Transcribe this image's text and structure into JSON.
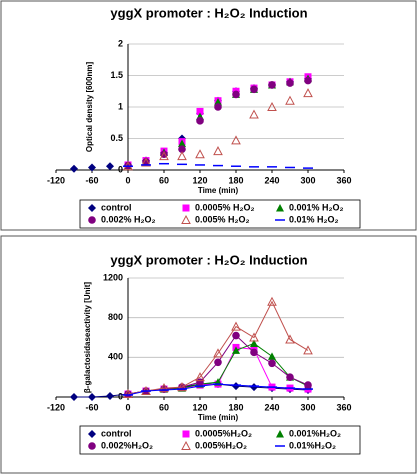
{
  "chart_data": [
    {
      "type": "scatter",
      "title": "yggX promoter : H₂O₂ Induction",
      "ylabel": "Optical density [600nm]",
      "xlabel": "Time (min)",
      "x": [
        -90,
        -60,
        -30,
        0,
        30,
        60,
        90,
        120,
        150,
        180,
        210,
        240,
        270,
        300
      ],
      "xlim": [
        -120,
        360
      ],
      "xticks": [
        -120,
        -60,
        0,
        60,
        120,
        180,
        240,
        300,
        360
      ],
      "ylim": [
        0,
        2
      ],
      "yticks": [
        0,
        0.5,
        1,
        1.5,
        2
      ],
      "grid": true,
      "series": [
        {
          "name": "control",
          "color": "#000080",
          "marker": "diamond",
          "values": [
            0.02,
            0.04,
            0.06,
            0.08,
            0.15,
            0.28,
            0.5,
            0.9,
            1.1,
            1.25,
            1.3,
            1.35,
            1.4,
            1.45
          ]
        },
        {
          "name": "0.0005% H₂O₂",
          "color": "#ff00ff",
          "marker": "square",
          "values": [
            null,
            null,
            null,
            0.08,
            0.15,
            0.3,
            0.45,
            0.93,
            1.1,
            1.25,
            1.3,
            1.35,
            1.4,
            1.48
          ]
        },
        {
          "name": "0.001% H₂O₂",
          "color": "#008000",
          "marker": "triangle",
          "values": [
            null,
            null,
            null,
            0.07,
            0.14,
            0.28,
            0.42,
            0.85,
            1.08,
            1.2,
            1.28,
            1.35,
            1.4,
            1.45
          ]
        },
        {
          "name": "0.002% H₂O₂",
          "color": "#800080",
          "marker": "circle",
          "values": [
            null,
            null,
            null,
            0.07,
            0.13,
            0.25,
            0.33,
            0.78,
            1.0,
            1.2,
            1.28,
            1.35,
            1.38,
            1.42
          ]
        },
        {
          "name": "0.005% H₂O₂",
          "color": "#c0504d",
          "marker": "open-triangle",
          "values": [
            null,
            null,
            null,
            0.06,
            0.12,
            0.22,
            0.22,
            0.25,
            0.3,
            0.47,
            0.88,
            1.0,
            1.1,
            1.22
          ]
        },
        {
          "name": "0.01% H₂O₂",
          "color": "#0000ff",
          "marker": "dash",
          "values": [
            null,
            null,
            null,
            0.06,
            0.08,
            0.1,
            0.09,
            0.08,
            0.07,
            0.06,
            0.05,
            0.05,
            0.04,
            0.03
          ]
        }
      ]
    },
    {
      "type": "line",
      "title": "yggX promoter : H₂O₂ Induction",
      "ylabel": "β-galactosidaseactivity [Unit]",
      "xlabel": "Time (min)",
      "x": [
        -90,
        -60,
        -30,
        0,
        30,
        60,
        90,
        120,
        150,
        180,
        210,
        240,
        270,
        300
      ],
      "xlim": [
        -120,
        360
      ],
      "xticks": [
        -120,
        -60,
        0,
        60,
        120,
        180,
        240,
        300,
        360
      ],
      "ylim": [
        0,
        1200
      ],
      "yticks": [
        0,
        400,
        800,
        1200
      ],
      "grid": true,
      "series": [
        {
          "name": "control",
          "color": "#000080",
          "marker": "diamond",
          "values": [
            0,
            0,
            10,
            30,
            60,
            80,
            100,
            130,
            130,
            110,
            100,
            90,
            80,
            70
          ]
        },
        {
          "name": "0.0005%H₂O₂",
          "color": "#ff00ff",
          "marker": "square",
          "values": [
            null,
            null,
            null,
            30,
            60,
            80,
            90,
            120,
            130,
            500,
            480,
            100,
            90,
            80
          ]
        },
        {
          "name": "0.001%H₂O₂",
          "color": "#008000",
          "marker": "triangle",
          "values": [
            null,
            null,
            null,
            30,
            60,
            80,
            90,
            130,
            150,
            470,
            540,
            410,
            200,
            110
          ]
        },
        {
          "name": "0.002%H₂O₂",
          "color": "#800080",
          "marker": "circle",
          "values": [
            null,
            null,
            null,
            30,
            60,
            80,
            100,
            150,
            350,
            620,
            450,
            340,
            200,
            120
          ]
        },
        {
          "name": "0.005%H₂O₂",
          "color": "#c0504d",
          "marker": "open-triangle",
          "values": [
            null,
            null,
            null,
            30,
            60,
            90,
            100,
            200,
            440,
            710,
            600,
            960,
            580,
            470
          ]
        },
        {
          "name": "0.01%H₂O₂",
          "color": "#0000ff",
          "marker": "dash",
          "values": [
            null,
            null,
            null,
            20,
            60,
            70,
            80,
            110,
            130,
            120,
            110,
            100,
            90,
            80
          ]
        }
      ]
    }
  ]
}
